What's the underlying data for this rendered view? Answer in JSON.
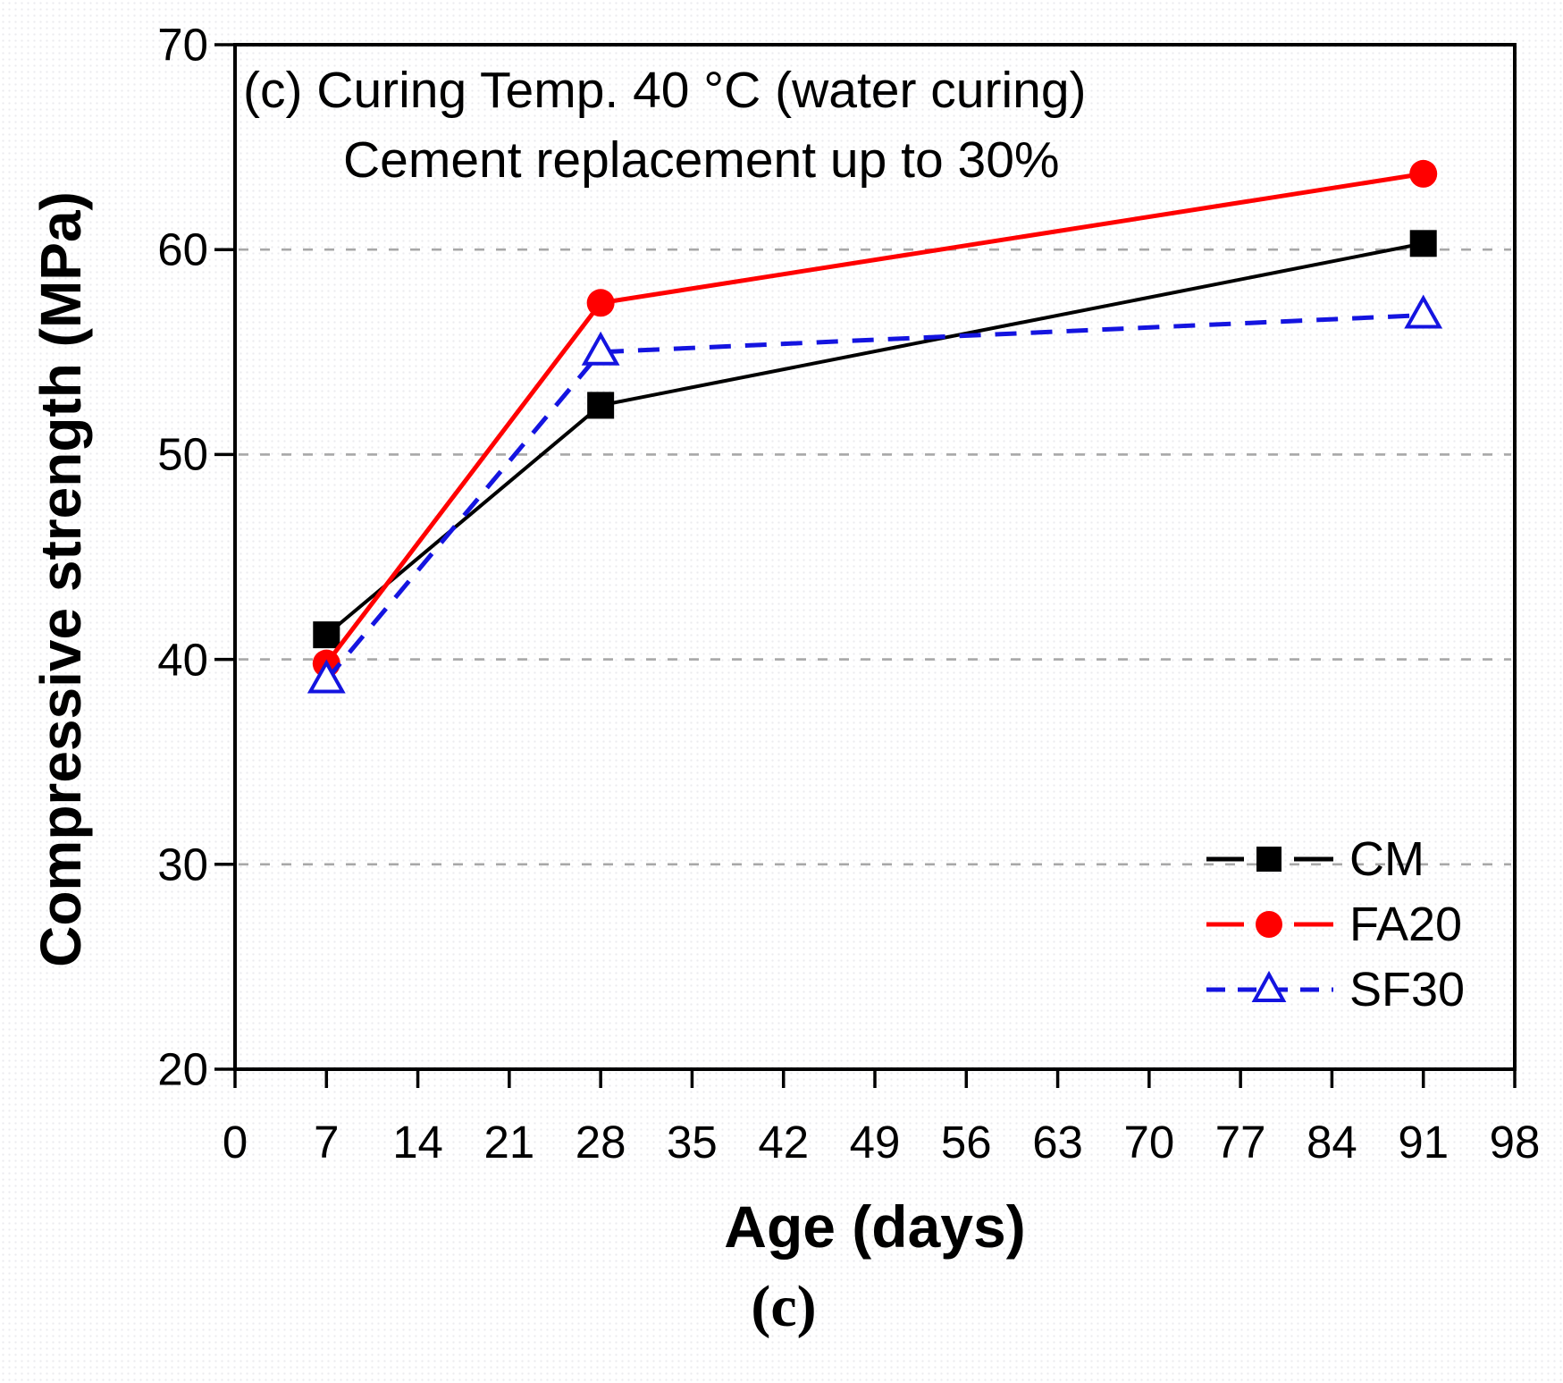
{
  "figure": {
    "caption": "(c)"
  },
  "chart_data": {
    "type": "line",
    "title": "(c) Curing Temp. 40 °C (water curing)",
    "subtitle": "Cement replacement up to 30%",
    "xlabel": "Age (days)",
    "ylabel": "Compressive strength (MPa)",
    "xlim": [
      0,
      98
    ],
    "ylim": [
      20,
      70
    ],
    "xticks": [
      0,
      7,
      14,
      21,
      28,
      35,
      42,
      49,
      56,
      63,
      70,
      77,
      84,
      91,
      98
    ],
    "yticks": [
      20,
      30,
      40,
      50,
      60,
      70
    ],
    "gridlines_y": [
      30,
      40,
      50,
      60
    ],
    "grid": "horizontal-dashed",
    "legend_position": "lower-right",
    "x": [
      7,
      28,
      91
    ],
    "series": [
      {
        "name": "CM",
        "values": [
          41.2,
          52.4,
          60.3
        ],
        "color": "#000000",
        "marker": "filled-square",
        "line_style": "solid"
      },
      {
        "name": "FA20",
        "values": [
          39.8,
          57.4,
          63.7
        ],
        "color": "#ff0000",
        "marker": "filled-circle",
        "line_style": "solid"
      },
      {
        "name": "SF30",
        "values": [
          39.0,
          55.0,
          56.8
        ],
        "color": "#1414e0",
        "marker": "open-triangle",
        "line_style": "dashed"
      }
    ],
    "colors": {
      "grid": "#a8a8a8",
      "axis": "#000000",
      "background": "#ffffff"
    }
  }
}
